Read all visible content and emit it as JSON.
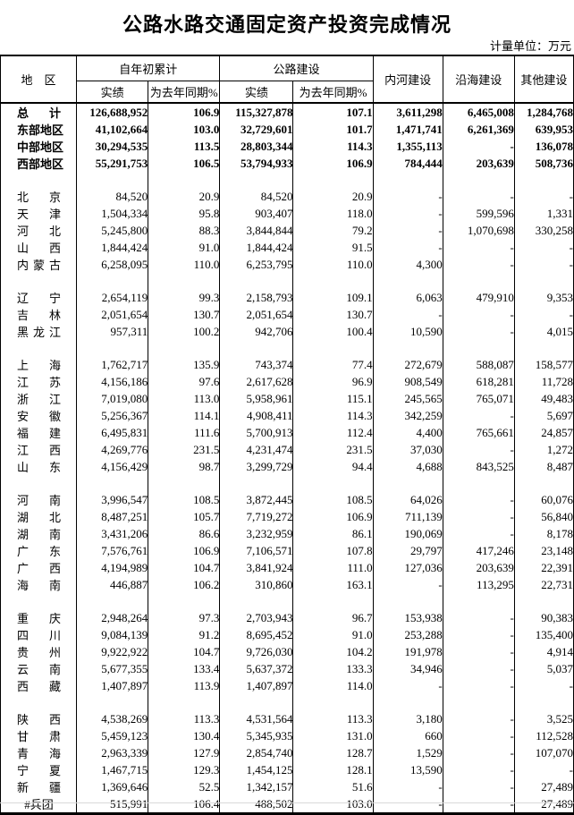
{
  "page": {
    "title": "公路水路交通固定资产投资完成情况",
    "unit_note": "计量单位：万元"
  },
  "table": {
    "headers": {
      "region": "地　区",
      "cumulative": "自年初累计",
      "highway": "公路建设",
      "actual1": "实绩",
      "yoy1": "为去年同期%",
      "actual2": "实绩",
      "yoy2": "为去年同期%",
      "inland": "内河建设",
      "coastal": "沿海建设",
      "other": "其他建设"
    },
    "groups": [
      {
        "rows": [
          {
            "region": "总计",
            "bold": true,
            "justify": true,
            "values": [
              "126,688,952",
              "106.9",
              "115,327,878",
              "107.1",
              "3,611,298",
              "6,465,008",
              "1,284,768"
            ]
          },
          {
            "region": "东部地区",
            "bold": true,
            "justify": true,
            "values": [
              "41,102,664",
              "103.0",
              "32,729,601",
              "101.7",
              "1,471,741",
              "6,261,369",
              "639,953"
            ]
          },
          {
            "region": "中部地区",
            "bold": true,
            "justify": true,
            "values": [
              "30,294,535",
              "113.5",
              "28,803,344",
              "114.3",
              "1,355,113",
              "-",
              "136,078"
            ]
          },
          {
            "region": "西部地区",
            "bold": true,
            "justify": true,
            "values": [
              "55,291,753",
              "106.5",
              "53,794,933",
              "106.9",
              "784,444",
              "203,639",
              "508,736"
            ]
          }
        ]
      },
      {
        "rows": [
          {
            "region": "北京",
            "bold": false,
            "justify": true,
            "values": [
              "84,520",
              "20.9",
              "84,520",
              "20.9",
              "-",
              "-",
              "-"
            ]
          },
          {
            "region": "天津",
            "bold": false,
            "justify": true,
            "values": [
              "1,504,334",
              "95.8",
              "903,407",
              "118.0",
              "-",
              "599,596",
              "1,331"
            ]
          },
          {
            "region": "河北",
            "bold": false,
            "justify": true,
            "values": [
              "5,245,800",
              "88.3",
              "3,844,844",
              "79.2",
              "-",
              "1,070,698",
              "330,258"
            ]
          },
          {
            "region": "山西",
            "bold": false,
            "justify": true,
            "values": [
              "1,844,424",
              "91.0",
              "1,844,424",
              "91.5",
              "-",
              "-",
              "-"
            ]
          },
          {
            "region": "内蒙古",
            "bold": false,
            "justify": true,
            "values": [
              "6,258,095",
              "110.0",
              "6,253,795",
              "110.0",
              "4,300",
              "-",
              "-"
            ]
          }
        ]
      },
      {
        "rows": [
          {
            "region": "辽宁",
            "bold": false,
            "justify": true,
            "values": [
              "2,654,119",
              "99.3",
              "2,158,793",
              "109.1",
              "6,063",
              "479,910",
              "9,353"
            ]
          },
          {
            "region": "吉林",
            "bold": false,
            "justify": true,
            "values": [
              "2,051,654",
              "130.7",
              "2,051,654",
              "130.7",
              "-",
              "-",
              "-"
            ]
          },
          {
            "region": "黑龙江",
            "bold": false,
            "justify": true,
            "values": [
              "957,311",
              "100.2",
              "942,706",
              "100.4",
              "10,590",
              "-",
              "4,015"
            ]
          }
        ]
      },
      {
        "rows": [
          {
            "region": "上海",
            "bold": false,
            "justify": true,
            "values": [
              "1,762,717",
              "135.9",
              "743,374",
              "77.4",
              "272,679",
              "588,087",
              "158,577"
            ]
          },
          {
            "region": "江苏",
            "bold": false,
            "justify": true,
            "values": [
              "4,156,186",
              "97.6",
              "2,617,628",
              "96.9",
              "908,549",
              "618,281",
              "11,728"
            ]
          },
          {
            "region": "浙江",
            "bold": false,
            "justify": true,
            "values": [
              "7,019,080",
              "113.0",
              "5,958,961",
              "115.1",
              "245,565",
              "765,071",
              "49,483"
            ]
          },
          {
            "region": "安徽",
            "bold": false,
            "justify": true,
            "values": [
              "5,256,367",
              "114.1",
              "4,908,411",
              "114.3",
              "342,259",
              "-",
              "5,697"
            ]
          },
          {
            "region": "福建",
            "bold": false,
            "justify": true,
            "values": [
              "6,495,831",
              "111.6",
              "5,700,913",
              "112.4",
              "4,400",
              "765,661",
              "24,857"
            ]
          },
          {
            "region": "江西",
            "bold": false,
            "justify": true,
            "values": [
              "4,269,776",
              "231.5",
              "4,231,474",
              "231.5",
              "37,030",
              "-",
              "1,272"
            ]
          },
          {
            "region": "山东",
            "bold": false,
            "justify": true,
            "values": [
              "4,156,429",
              "98.7",
              "3,299,729",
              "94.4",
              "4,688",
              "843,525",
              "8,487"
            ]
          }
        ]
      },
      {
        "rows": [
          {
            "region": "河南",
            "bold": false,
            "justify": true,
            "values": [
              "3,996,547",
              "108.5",
              "3,872,445",
              "108.5",
              "64,026",
              "-",
              "60,076"
            ]
          },
          {
            "region": "湖北",
            "bold": false,
            "justify": true,
            "values": [
              "8,487,251",
              "105.7",
              "7,719,272",
              "106.9",
              "711,139",
              "-",
              "56,840"
            ]
          },
          {
            "region": "湖南",
            "bold": false,
            "justify": true,
            "values": [
              "3,431,206",
              "86.6",
              "3,232,959",
              "86.1",
              "190,069",
              "-",
              "8,178"
            ]
          },
          {
            "region": "广东",
            "bold": false,
            "justify": true,
            "values": [
              "7,576,761",
              "106.9",
              "7,106,571",
              "107.8",
              "29,797",
              "417,246",
              "23,148"
            ]
          },
          {
            "region": "广西",
            "bold": false,
            "justify": true,
            "values": [
              "4,194,989",
              "104.7",
              "3,841,924",
              "111.0",
              "127,036",
              "203,639",
              "22,391"
            ]
          },
          {
            "region": "海南",
            "bold": false,
            "justify": true,
            "values": [
              "446,887",
              "106.2",
              "310,860",
              "163.1",
              "-",
              "113,295",
              "22,731"
            ]
          }
        ]
      },
      {
        "rows": [
          {
            "region": "重庆",
            "bold": false,
            "justify": true,
            "values": [
              "2,948,264",
              "97.3",
              "2,703,943",
              "96.7",
              "153,938",
              "-",
              "90,383"
            ]
          },
          {
            "region": "四川",
            "bold": false,
            "justify": true,
            "values": [
              "9,084,139",
              "91.2",
              "8,695,452",
              "91.0",
              "253,288",
              "-",
              "135,400"
            ]
          },
          {
            "region": "贵州",
            "bold": false,
            "justify": true,
            "values": [
              "9,922,922",
              "104.7",
              "9,726,030",
              "104.2",
              "191,978",
              "-",
              "4,914"
            ]
          },
          {
            "region": "云南",
            "bold": false,
            "justify": true,
            "values": [
              "5,677,355",
              "133.4",
              "5,637,372",
              "133.3",
              "34,946",
              "-",
              "5,037"
            ]
          },
          {
            "region": "西藏",
            "bold": false,
            "justify": true,
            "values": [
              "1,407,897",
              "113.9",
              "1,407,897",
              "114.0",
              "-",
              "-",
              "-"
            ]
          }
        ]
      },
      {
        "rows": [
          {
            "region": "陕西",
            "bold": false,
            "justify": true,
            "values": [
              "4,538,269",
              "113.3",
              "4,531,564",
              "113.3",
              "3,180",
              "-",
              "3,525"
            ]
          },
          {
            "region": "甘肃",
            "bold": false,
            "justify": true,
            "values": [
              "5,459,123",
              "130.4",
              "5,345,935",
              "131.0",
              "660",
              "-",
              "112,528"
            ]
          },
          {
            "region": "青海",
            "bold": false,
            "justify": true,
            "values": [
              "2,963,339",
              "127.9",
              "2,854,740",
              "128.7",
              "1,529",
              "-",
              "107,070"
            ]
          },
          {
            "region": "宁夏",
            "bold": false,
            "justify": true,
            "values": [
              "1,467,715",
              "129.3",
              "1,454,125",
              "128.1",
              "13,590",
              "-",
              "-"
            ]
          },
          {
            "region": "新疆",
            "bold": false,
            "justify": true,
            "values": [
              "1,369,646",
              "52.5",
              "1,342,157",
              "51.6",
              "-",
              "-",
              "27,489"
            ]
          },
          {
            "region": "#兵团",
            "bold": false,
            "justify": false,
            "values": [
              "515,991",
              "106.4",
              "488,502",
              "103.0",
              "-",
              "-",
              "27,489"
            ]
          }
        ]
      }
    ]
  }
}
